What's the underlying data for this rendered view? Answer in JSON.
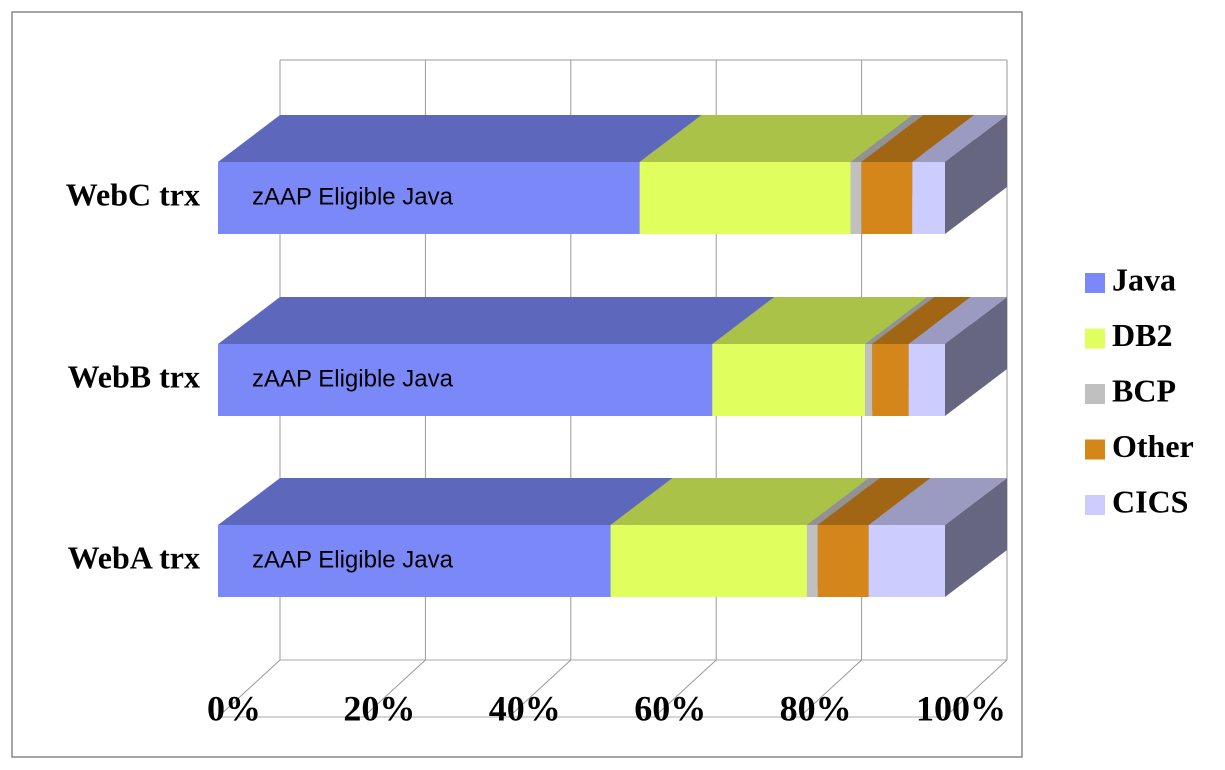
{
  "chart_data": {
    "type": "bar3d_stacked_horizontal",
    "categories": [
      "WebA trx",
      "WebB trx",
      "WebC trx"
    ],
    "bar_label": "zAAP Eligible Java",
    "series": [
      {
        "name": "Java",
        "color": "#7b88f7",
        "values": [
          54,
          68,
          58
        ]
      },
      {
        "name": "DB2",
        "color": "#e0ff5f",
        "values": [
          27,
          21,
          29
        ]
      },
      {
        "name": "BCP",
        "color": "#c0c0c0",
        "values": [
          1.5,
          1,
          1.5
        ]
      },
      {
        "name": "Other",
        "color": "#d4861a",
        "values": [
          7,
          5,
          7
        ]
      },
      {
        "name": "CICS",
        "color": "#ccccff",
        "values": [
          10.5,
          5,
          4.5
        ]
      }
    ],
    "xlim": [
      0,
      100
    ],
    "xticks": [
      {
        "value": 0,
        "label": "0%"
      },
      {
        "value": 20,
        "label": "20%"
      },
      {
        "value": 40,
        "label": "40%"
      },
      {
        "value": 60,
        "label": "60%"
      },
      {
        "value": 80,
        "label": "80%"
      },
      {
        "value": 100,
        "label": "100%"
      }
    ],
    "grid": true,
    "legend": "right"
  }
}
